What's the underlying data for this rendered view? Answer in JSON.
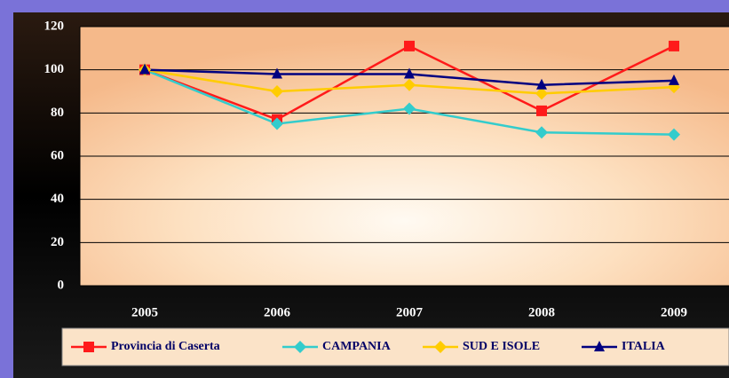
{
  "chart_data": {
    "type": "line",
    "categories": [
      "2005",
      "2006",
      "2007",
      "2008",
      "2009"
    ],
    "series": [
      {
        "name": "Provincia di Caserta",
        "color": "#ff1a1a",
        "marker": "square",
        "values": [
          100,
          77,
          111,
          81,
          111
        ]
      },
      {
        "name": "CAMPANIA",
        "color": "#33cccc",
        "marker": "diamond",
        "values": [
          100,
          75,
          82,
          71,
          70
        ]
      },
      {
        "name": "SUD E ISOLE",
        "color": "#ffcc00",
        "marker": "diamond",
        "values": [
          100,
          90,
          93,
          89,
          92
        ]
      },
      {
        "name": "ITALIA",
        "color": "#000080",
        "marker": "triangle",
        "values": [
          100,
          98,
          98,
          93,
          95
        ]
      }
    ],
    "ylim": [
      0,
      120
    ],
    "yticks": [
      0,
      20,
      40,
      60,
      80,
      100,
      120
    ],
    "grid": true,
    "legend": "bottom"
  }
}
